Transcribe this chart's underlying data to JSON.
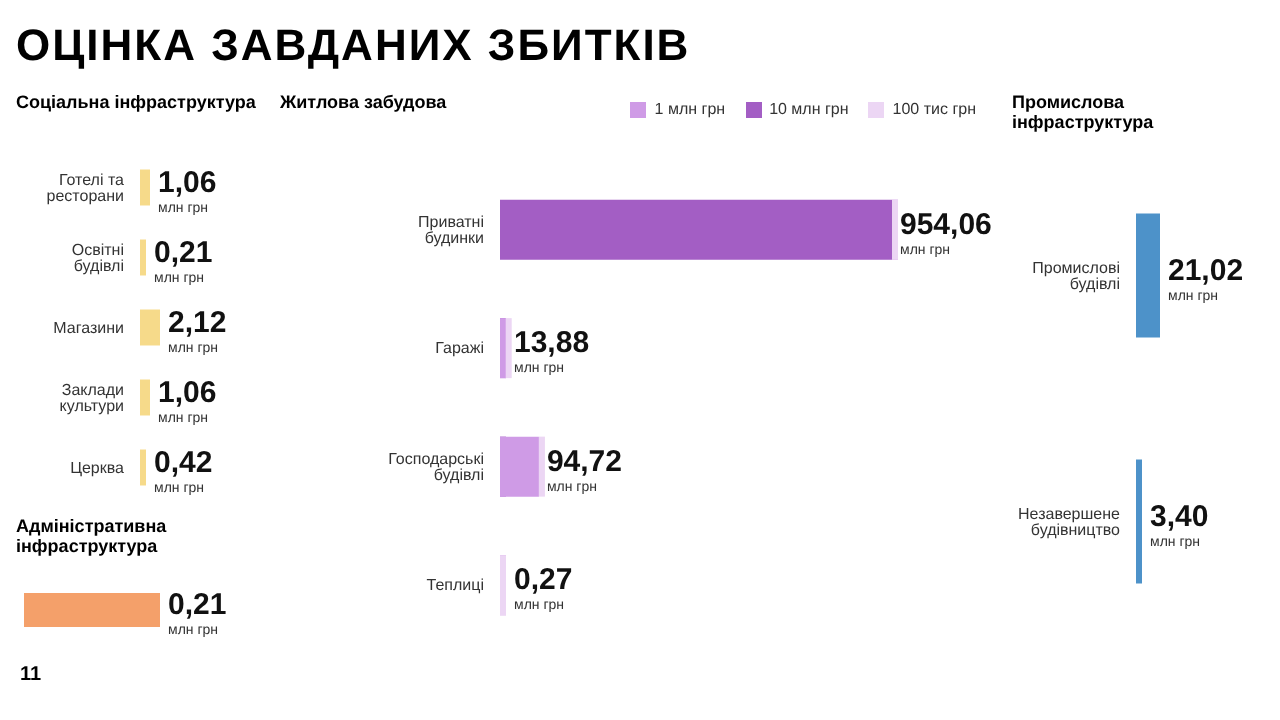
{
  "chart_data": [
    {
      "type": "other",
      "title": "Соціальна інфраструктура",
      "categories": [
        "Готелі та ресторани",
        "Освітні будівлі",
        "Магазини",
        "Заклади культури",
        "Церква"
      ],
      "series": [
        {
          "color": "#f6da8a",
          "values": [
            1.06,
            0.21,
            2.12,
            1.06,
            0.42
          ],
          "value_labels": [
            "1,06",
            "0,21",
            "2,12",
            "1,06",
            "0,42"
          ]
        }
      ],
      "annotations": [
        "млн грн",
        "ОЦІНКА ЗАВДАНИХ ЗБИТКІВ",
        "11"
      ]
    },
    {
      "type": "other",
      "title": "Адміністративна інфраструктура",
      "categories": [
        null
      ],
      "series": [
        {
          "color": "#f4a06a",
          "values": [
            0.21
          ],
          "value_labels": [
            "0,21"
          ]
        }
      ],
      "annotations": [
        "млн грн"
      ]
    },
    {
      "type": "other",
      "title": "Житлова забудова",
      "categories": [
        "Приватні будинки",
        "Гаражі",
        "Господарські будівлі",
        "Теплиці"
      ],
      "legend": "top right",
      "series": [
        {
          "name": "10 млн грн",
          "color": "#a35ec4",
          "values": [
            954.06,
            null,
            null,
            null
          ],
          "value_labels": [
            "954,06",
            null,
            null,
            null
          ]
        },
        {
          "name": "1 млн грн",
          "color": "#cf9be6",
          "values": [
            null,
            13.88,
            94.72,
            null
          ],
          "value_labels": [
            null,
            "13,88",
            "94,72",
            null
          ]
        },
        {
          "name": "100 тис грн",
          "color": "#ecd6f4",
          "values": [
            null,
            null,
            null,
            0.27
          ],
          "value_labels": [
            null,
            null,
            null,
            "0,27"
          ]
        }
      ],
      "annotations": [
        "млн грн"
      ]
    },
    {
      "type": "other",
      "title": "Промислова інфраструктура",
      "categories": [
        "Промислові будівлі",
        "Незавершене будівництво"
      ],
      "series": [
        {
          "color": "#4d92c9",
          "values": [
            21.02,
            3.4
          ],
          "value_labels": [
            "21,02",
            "3,40"
          ]
        }
      ],
      "annotations": [
        "млн грн"
      ]
    }
  ]
}
